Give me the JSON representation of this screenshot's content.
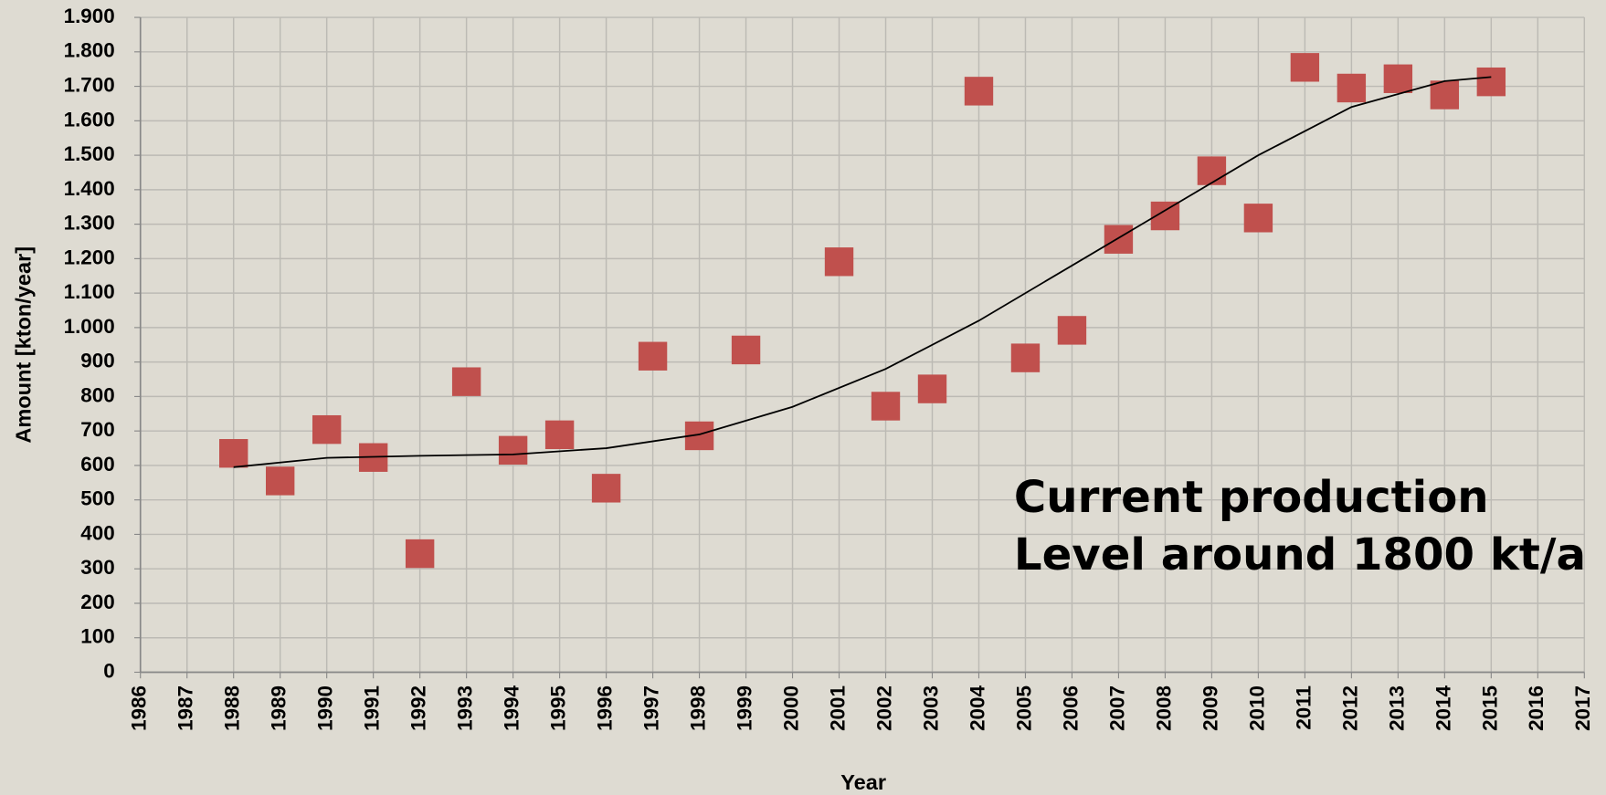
{
  "chart_data": {
    "type": "scatter",
    "x_label": "Year",
    "y_label": "Amount [kton/year]",
    "annotation": [
      "Current production",
      "Level around 1800 kt/a"
    ],
    "xlim": [
      1986,
      2017
    ],
    "xticks": [
      1986,
      1987,
      1988,
      1989,
      1990,
      1991,
      1992,
      1993,
      1994,
      1995,
      1996,
      1997,
      1998,
      1999,
      2000,
      2001,
      2002,
      2003,
      2004,
      2005,
      2006,
      2007,
      2008,
      2009,
      2010,
      2011,
      2012,
      2013,
      2014,
      2015,
      2016,
      2017
    ],
    "ylim": [
      0,
      1900
    ],
    "yticks": [
      0,
      100,
      200,
      300,
      400,
      500,
      600,
      700,
      800,
      900,
      {
        "value": 1000,
        "label": "1.000"
      },
      {
        "value": 1100,
        "label": "1.100"
      },
      {
        "value": 1200,
        "label": "1.200"
      },
      {
        "value": 1300,
        "label": "1.300"
      },
      {
        "value": 1400,
        "label": "1.400"
      },
      {
        "value": 1500,
        "label": "1.500"
      },
      {
        "value": 1600,
        "label": "1.600"
      },
      {
        "value": 1700,
        "label": "1.700"
      },
      {
        "value": 1800,
        "label": "1.800"
      },
      {
        "value": 1900,
        "label": "1.900"
      }
    ],
    "grid": true,
    "series": [
      {
        "color": "#c0504d",
        "marker": "square",
        "x": [
          1988,
          1989,
          1990,
          1991,
          1992,
          1993,
          1994,
          1995,
          1996,
          1997,
          1998,
          1999,
          2001,
          2002,
          2003,
          2004,
          2005,
          2006,
          2007,
          2008,
          2009,
          2010,
          2011,
          2012,
          2013,
          2014,
          2015
        ],
        "values": [
          635,
          555,
          704,
          623,
          344,
          843,
          644,
          689,
          534,
          917,
          686,
          935,
          1191,
          772,
          822,
          1686,
          912,
          992,
          1256,
          1324,
          1455,
          1318,
          1755,
          1695,
          1722,
          1675,
          1713
        ]
      },
      {
        "color": "#000000",
        "marker": "line",
        "x": [
          1988,
          1990,
          1992,
          1994,
          1996,
          1998,
          2000,
          2002,
          2004,
          2006,
          2008,
          2010,
          2012,
          2014,
          2015
        ],
        "values": [
          595,
          622,
          628,
          632,
          650,
          690,
          770,
          880,
          1020,
          1180,
          1340,
          1500,
          1640,
          1715,
          1727
        ]
      }
    ]
  }
}
